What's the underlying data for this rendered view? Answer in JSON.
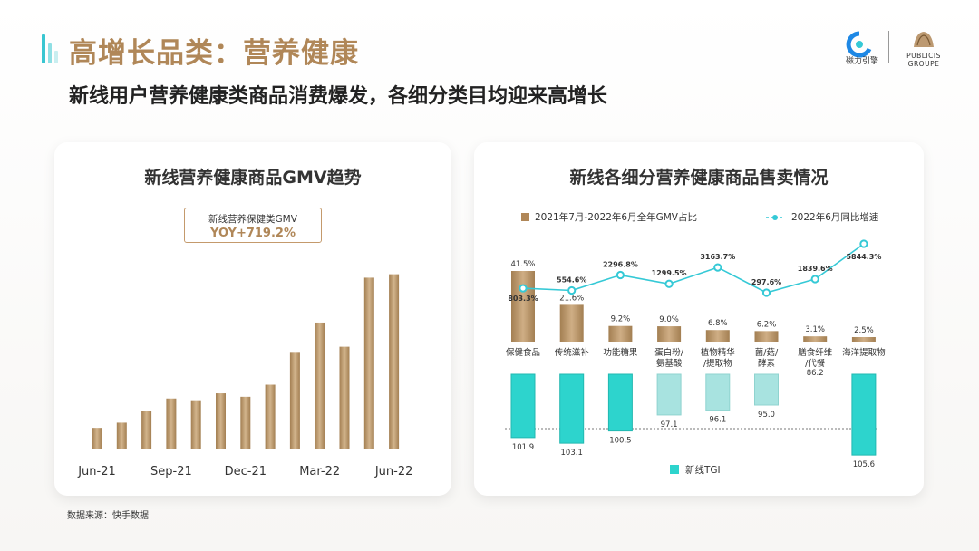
{
  "header": {
    "title": "高增长品类：营养健康",
    "subtitle": "新线用户营养健康类商品消费爆发，各细分类目均迎来高增长"
  },
  "brand": {
    "magnet_logo_text": "磁力引擎",
    "publicis_text_1": "PUBLICIS",
    "publicis_text_2": "GROUPE"
  },
  "colors": {
    "accent_gold": "#b08758",
    "bar_gold": "#b89566",
    "teal": "#2dd4cd",
    "teal_light": "#a8e3e0",
    "line_teal": "#35c9d6"
  },
  "left_card": {
    "title": "新线营养健康商品GMV趋势",
    "yoy_label": "新线营养保健类GMV",
    "yoy_value": "YOY+719.2%"
  },
  "right_card": {
    "title": "新线各细分营养健康商品售卖情况",
    "legend_share": "2021年7月-2022年6月全年GMV占比",
    "legend_growth": "2022年6月同比增速",
    "legend_tgi": "新线TGI"
  },
  "source": "数据来源：快手数据",
  "chart_data": [
    {
      "type": "bar",
      "title": "新线营养健康商品GMV趋势",
      "categories": [
        "Jun-21",
        "Jul-21",
        "Aug-21",
        "Sep-21",
        "Oct-21",
        "Nov-21",
        "Dec-21",
        "Jan-22",
        "Feb-22",
        "Mar-22",
        "Apr-22",
        "May-22",
        "Jun-22"
      ],
      "tick_labels": [
        "Jun-21",
        "Sep-21",
        "Dec-21",
        "Mar-22",
        "Jun-22"
      ],
      "values": [
        12,
        15,
        22,
        29,
        28,
        32,
        30,
        37,
        56,
        73,
        59,
        99,
        101
      ],
      "units": "relative GMV (no axis shown)",
      "ylim": [
        0,
        105
      ]
    },
    {
      "type": "bar",
      "title": "新线各细分营养健康商品售卖情况",
      "categories": [
        "保健食品",
        "传统滋补",
        "功能糖果",
        "蛋白粉/\n氨基酸",
        "植物精华\n/提取物",
        "菌/菇/\n酵素",
        "膳食纤维\n/代餐",
        "海洋提取物"
      ],
      "series": [
        {
          "name": "2021年7月-2022年6月全年GMV占比",
          "kind": "bar",
          "values": [
            41.5,
            21.6,
            9.2,
            9.0,
            6.8,
            6.2,
            3.1,
            2.5
          ],
          "labels": [
            "41.5%",
            "21.6%",
            "9.2%",
            "9.0%",
            "6.8%",
            "6.2%",
            "3.1%",
            "2.5%"
          ]
        },
        {
          "name": "2022年6月同比增速",
          "kind": "line",
          "values": [
            803.3,
            554.6,
            2296.8,
            1299.5,
            3163.7,
            297.6,
            1839.6,
            5844.3
          ],
          "labels": [
            "803.3%",
            "554.6%",
            "2296.8%",
            "1299.5%",
            "3163.7%",
            "297.6%",
            "1839.6%",
            "5844.3%"
          ]
        },
        {
          "name": "新线TGI",
          "kind": "bar",
          "baseline": 100,
          "values": [
            101.9,
            103.1,
            100.5,
            97.1,
            96.1,
            95.0,
            86.2,
            105.6
          ],
          "labels": [
            "101.9",
            "103.1",
            "100.5",
            "97.1",
            "96.1",
            "95.0",
            "86.2",
            "105.6"
          ]
        }
      ]
    }
  ]
}
